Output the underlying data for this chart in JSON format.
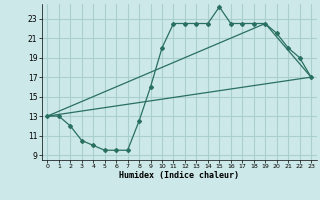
{
  "xlabel": "Humidex (Indice chaleur)",
  "bg_color": "#cce8e8",
  "grid_color": "#aacfcf",
  "line_color": "#2a7060",
  "xlim": [
    -0.5,
    23.5
  ],
  "ylim": [
    8.5,
    24.5
  ],
  "xticks": [
    0,
    1,
    2,
    3,
    4,
    5,
    6,
    7,
    8,
    9,
    10,
    11,
    12,
    13,
    14,
    15,
    16,
    17,
    18,
    19,
    20,
    21,
    22,
    23
  ],
  "yticks": [
    9,
    11,
    13,
    15,
    17,
    19,
    21,
    23
  ],
  "line1_x": [
    0,
    1,
    2,
    3,
    4,
    5,
    6,
    7,
    8,
    9,
    10,
    11,
    12,
    13,
    14,
    15,
    16,
    17,
    18,
    19,
    20,
    21,
    22,
    23
  ],
  "line1_y": [
    13.0,
    13.0,
    12.0,
    10.5,
    10.0,
    9.5,
    9.5,
    9.5,
    12.5,
    16.0,
    20.0,
    22.5,
    22.5,
    22.5,
    22.5,
    24.2,
    22.5,
    22.5,
    22.5,
    22.5,
    21.5,
    20.0,
    19.0,
    17.0
  ],
  "line2_x": [
    0,
    23
  ],
  "line2_y": [
    13.0,
    17.0
  ],
  "line3_x": [
    0,
    19,
    23
  ],
  "line3_y": [
    13.0,
    22.5,
    17.0
  ]
}
